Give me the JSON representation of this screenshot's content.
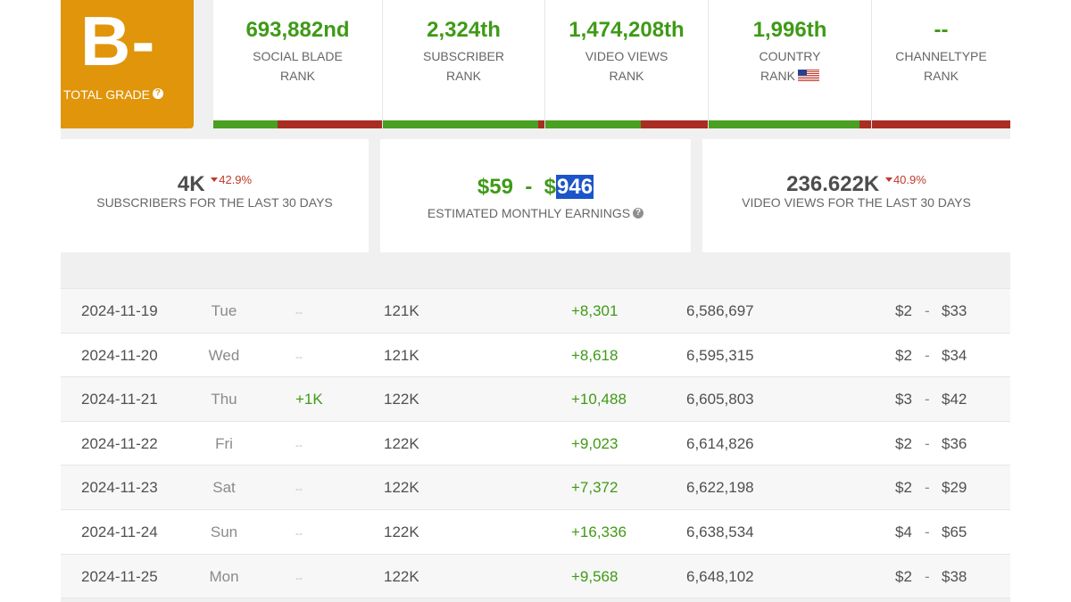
{
  "grade": {
    "letter": "B-",
    "label": "TOTAL GRADE",
    "help": "?"
  },
  "ranks": [
    {
      "value": "693,882nd",
      "label1": "SOCIAL BLADE",
      "label2": "RANK",
      "green_fraction": 0.38
    },
    {
      "value": "2,324th",
      "label1": "SUBSCRIBER",
      "label2": "RANK",
      "green_fraction": 0.96
    },
    {
      "value": "1,474,208th",
      "label1": "VIDEO VIEWS",
      "label2": "RANK",
      "green_fraction": 0.59
    },
    {
      "value": "1,996th",
      "label1": "COUNTRY",
      "label2": "RANK",
      "green_fraction": 0.93,
      "flag": "us-flag-icon"
    },
    {
      "value": "--",
      "label1": "CHANNELTYPE",
      "label2": "RANK",
      "green_fraction": 0.0
    }
  ],
  "cards": {
    "subscribers": {
      "value": "4K",
      "delta": "42.9%",
      "label": "SUBSCRIBERS FOR THE LAST 30 DAYS"
    },
    "earnings": {
      "low": "$59",
      "sep": "-",
      "high_prefix": "$",
      "high_selected": "946",
      "label": "ESTIMATED MONTHLY EARNINGS",
      "help": "?"
    },
    "views": {
      "value": "236.622K",
      "delta": "40.9%",
      "label": "VIDEO VIEWS FOR THE LAST 30 DAYS"
    }
  },
  "rows": [
    {
      "date": "2024-11-19",
      "day": "Tue",
      "sub_change": "--",
      "subs": "121K",
      "view_change": "+8,301",
      "views": "6,586,697",
      "earn_low": "$2",
      "dash": "-",
      "earn_high": "$33"
    },
    {
      "date": "2024-11-20",
      "day": "Wed",
      "sub_change": "--",
      "subs": "121K",
      "view_change": "+8,618",
      "views": "6,595,315",
      "earn_low": "$2",
      "dash": "-",
      "earn_high": "$34"
    },
    {
      "date": "2024-11-21",
      "day": "Thu",
      "sub_change": "+1K",
      "subs": "122K",
      "view_change": "+10,488",
      "views": "6,605,803",
      "earn_low": "$3",
      "dash": "-",
      "earn_high": "$42"
    },
    {
      "date": "2024-11-22",
      "day": "Fri",
      "sub_change": "--",
      "subs": "122K",
      "view_change": "+9,023",
      "views": "6,614,826",
      "earn_low": "$2",
      "dash": "-",
      "earn_high": "$36"
    },
    {
      "date": "2024-11-23",
      "day": "Sat",
      "sub_change": "--",
      "subs": "122K",
      "view_change": "+7,372",
      "views": "6,622,198",
      "earn_low": "$2",
      "dash": "-",
      "earn_high": "$29"
    },
    {
      "date": "2024-11-24",
      "day": "Sun",
      "sub_change": "--",
      "subs": "122K",
      "view_change": "+16,336",
      "views": "6,638,534",
      "earn_low": "$4",
      "dash": "-",
      "earn_high": "$65"
    },
    {
      "date": "2024-11-25",
      "day": "Mon",
      "sub_change": "--",
      "subs": "122K",
      "view_change": "+9,568",
      "views": "6,648,102",
      "earn_low": "$2",
      "dash": "-",
      "earn_high": "$38"
    }
  ],
  "colors": {
    "grade_bg": "#e0950a",
    "green": "#3f9a17",
    "bar_green": "#4aa021",
    "bar_red": "#a92d23",
    "selection": "#1c54c9"
  }
}
